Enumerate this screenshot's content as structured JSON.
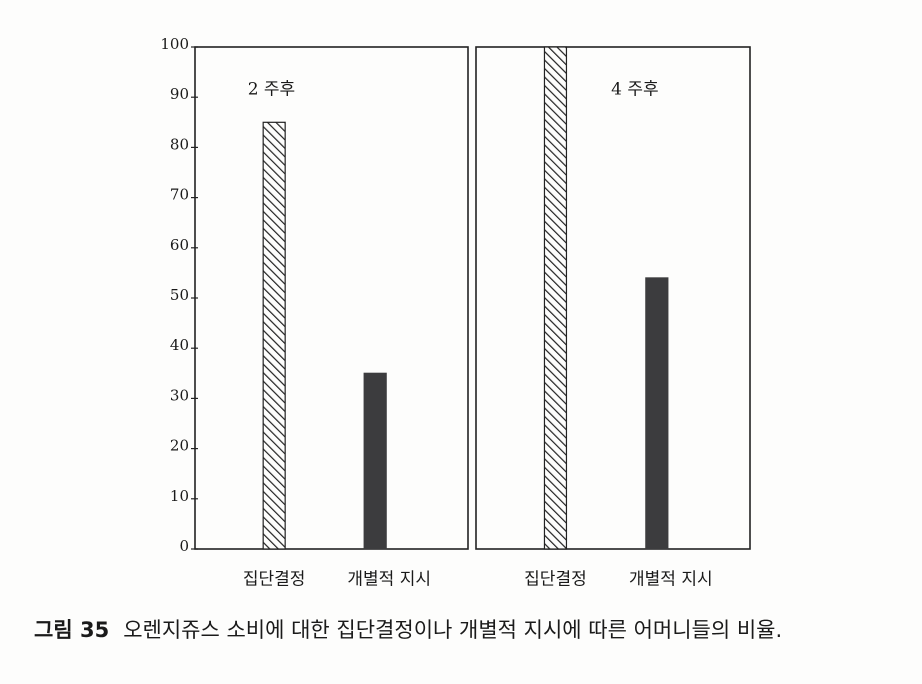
{
  "chart_data": [
    {
      "type": "bar",
      "title": "2 주후",
      "categories": [
        "집단결정",
        "개별적 지시"
      ],
      "values": [
        85,
        35
      ],
      "colors": [
        "#222222",
        "#3c3c3e"
      ],
      "hatch": [
        true,
        false
      ],
      "ylim": [
        0,
        100
      ],
      "yticks": [
        0,
        10,
        20,
        30,
        40,
        50,
        60,
        70,
        80,
        90,
        100
      ]
    },
    {
      "type": "bar",
      "title": "4 주후",
      "categories": [
        "집단결정",
        "개별적 지시"
      ],
      "values": [
        100,
        54
      ],
      "colors": [
        "#222222",
        "#3c3c3e"
      ],
      "hatch": [
        true,
        false
      ],
      "ylim": [
        0,
        100
      ]
    }
  ],
  "caption": {
    "label": "그림 35",
    "text": "오렌지쥬스 소비에 대한 집단결정이나 개별적 지시에 따른 어머니들의 비율."
  }
}
